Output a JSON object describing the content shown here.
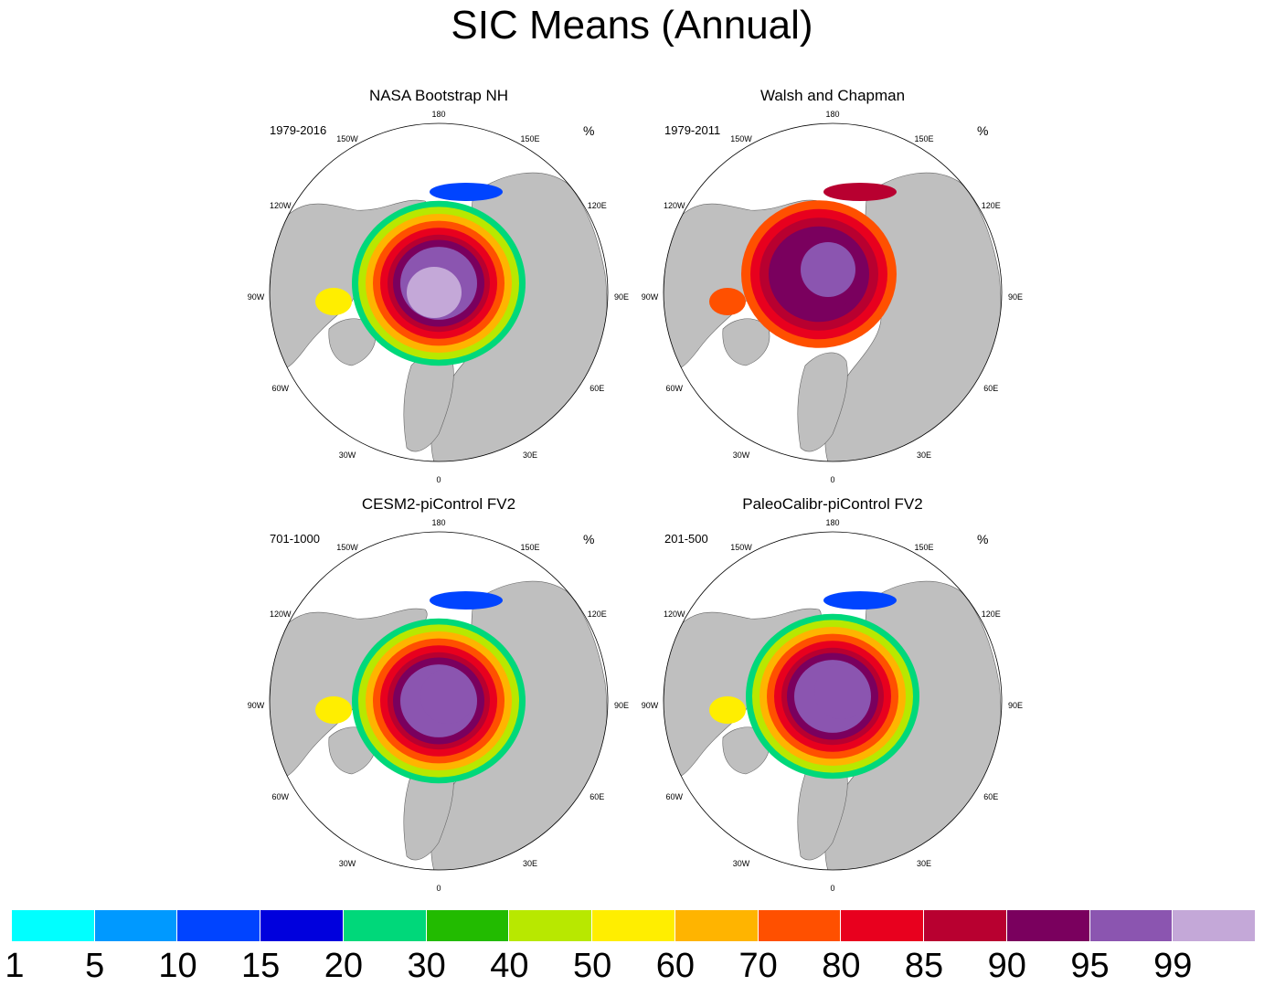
{
  "title": "SIC Means (Annual)",
  "units": "%",
  "lon_labels": [
    "180",
    "150E",
    "120E",
    "90E",
    "60E",
    "30E",
    "0",
    "30W",
    "60W",
    "90W",
    "120W",
    "150W"
  ],
  "panels": [
    {
      "title": "NASA Bootstrap NH",
      "years": "1979-2016"
    },
    {
      "title": "Walsh and Chapman",
      "years": "1979-2011"
    },
    {
      "title": "CESM2-piControl FV2",
      "years": "701-1000"
    },
    {
      "title": "PaleoCalibr-piControl FV2",
      "years": "201-500"
    }
  ],
  "colorbar": {
    "labels": [
      "1",
      "5",
      "10",
      "15",
      "20",
      "30",
      "40",
      "50",
      "60",
      "70",
      "80",
      "85",
      "90",
      "95",
      "99"
    ],
    "colors": [
      "#00ffff",
      "#0099ff",
      "#0044ff",
      "#0000dd",
      "#00d87a",
      "#22bb00",
      "#b8e800",
      "#ffee00",
      "#ffb400",
      "#ff5000",
      "#e8001e",
      "#b80030",
      "#7a005e",
      "#8b55b0",
      "#c4a8d8"
    ]
  }
}
